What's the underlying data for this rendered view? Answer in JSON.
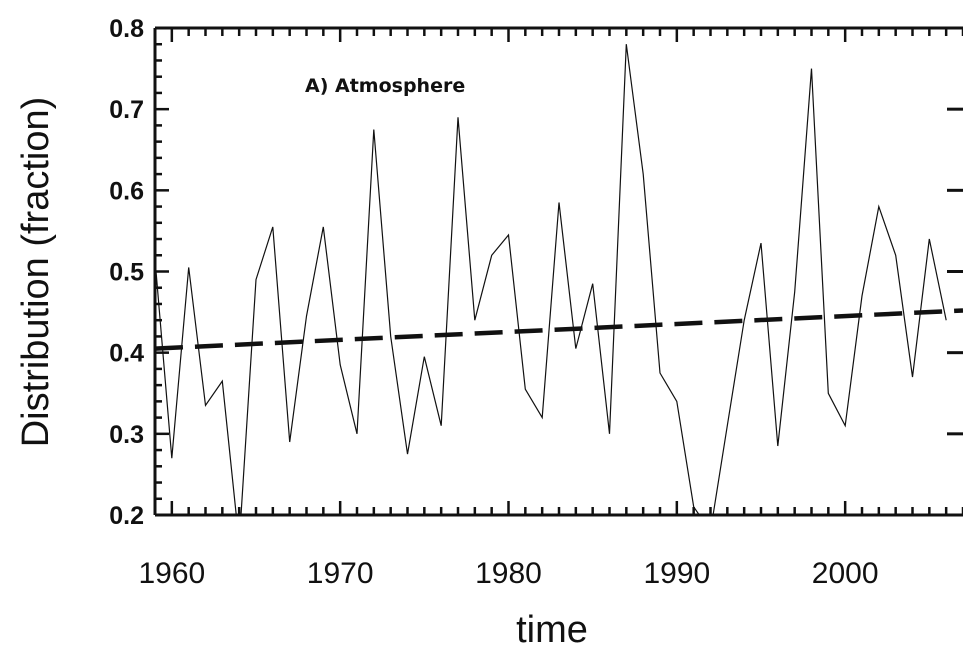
{
  "chart_data": {
    "type": "line",
    "annotation": "A) Atmosphere",
    "xlabel": "time",
    "ylabel": "Distribution (fraction)",
    "xlim": [
      1959,
      2007
    ],
    "ylim": [
      0.2,
      0.8
    ],
    "x_ticks": [
      1960,
      1970,
      1980,
      1990,
      2000
    ],
    "x_tick_labels": [
      "1960",
      "1970",
      "1980",
      "1990",
      "2000"
    ],
    "y_ticks": [
      0.2,
      0.3,
      0.4,
      0.5,
      0.6,
      0.7,
      0.8
    ],
    "y_tick_labels": [
      "0.2",
      "0.3",
      "0.4",
      "0.5",
      "0.6",
      "0.7",
      "0.8"
    ],
    "grid": false,
    "series": [
      {
        "style": "thin-solid",
        "x": [
          1959,
          1960,
          1961,
          1962,
          1963,
          1964,
          1965,
          1966,
          1967,
          1968,
          1969,
          1970,
          1971,
          1972,
          1973,
          1974,
          1975,
          1976,
          1977,
          1978,
          1979,
          1980,
          1981,
          1982,
          1983,
          1984,
          1985,
          1986,
          1987,
          1988,
          1989,
          1990,
          1991,
          1992,
          1993,
          1994,
          1995,
          1996,
          1997,
          1998,
          1999,
          2000,
          2001,
          2002,
          2003,
          2004,
          2005,
          2006
        ],
        "y": [
          0.515,
          0.27,
          0.505,
          0.335,
          0.365,
          0.165,
          0.49,
          0.555,
          0.29,
          0.445,
          0.555,
          0.385,
          0.3,
          0.675,
          0.42,
          0.275,
          0.395,
          0.31,
          0.69,
          0.44,
          0.52,
          0.545,
          0.355,
          0.32,
          0.585,
          0.405,
          0.485,
          0.3,
          0.78,
          0.62,
          0.375,
          0.34,
          0.21,
          0.18,
          0.31,
          0.44,
          0.535,
          0.285,
          0.475,
          0.75,
          0.35,
          0.31,
          0.47,
          0.58,
          0.52,
          0.37,
          0.54,
          0.44
        ]
      },
      {
        "style": "thick-dashed",
        "x": [
          1959,
          2007
        ],
        "y": [
          0.405,
          0.452
        ]
      }
    ]
  }
}
